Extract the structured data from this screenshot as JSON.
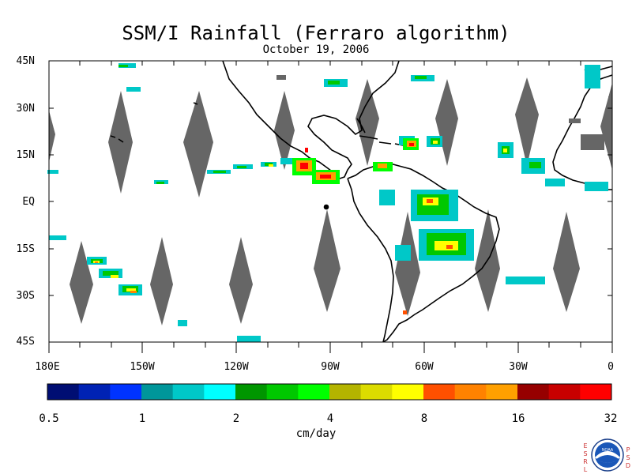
{
  "title": "SSM/I Rainfall (Ferraro algorithm)",
  "date": "October 19, 2006",
  "lat_labels": [
    "45N",
    "30N",
    "15N",
    "EQ",
    "15S",
    "30S",
    "45S"
  ],
  "lon_labels": [
    "180E",
    "150W",
    "120W",
    "90W",
    "60W",
    "30W",
    "0"
  ],
  "colorbar": {
    "colors": [
      "#000e73",
      "#0022b4",
      "#0033ff",
      "#00969a",
      "#00c8c8",
      "#00ffff",
      "#009600",
      "#00c800",
      "#00ff00",
      "#b4b400",
      "#dcdc00",
      "#ffff00",
      "#ff5000",
      "#ff8200",
      "#ffa000",
      "#960000",
      "#c80000",
      "#ff0000"
    ],
    "tick_labels": [
      "0.5",
      "1",
      "2",
      "4",
      "8",
      "16",
      "32"
    ],
    "units": "cm/day"
  },
  "logo": {
    "left_text": "ESRL",
    "right_text": "PSD",
    "emblem_text": "NOAA"
  }
}
